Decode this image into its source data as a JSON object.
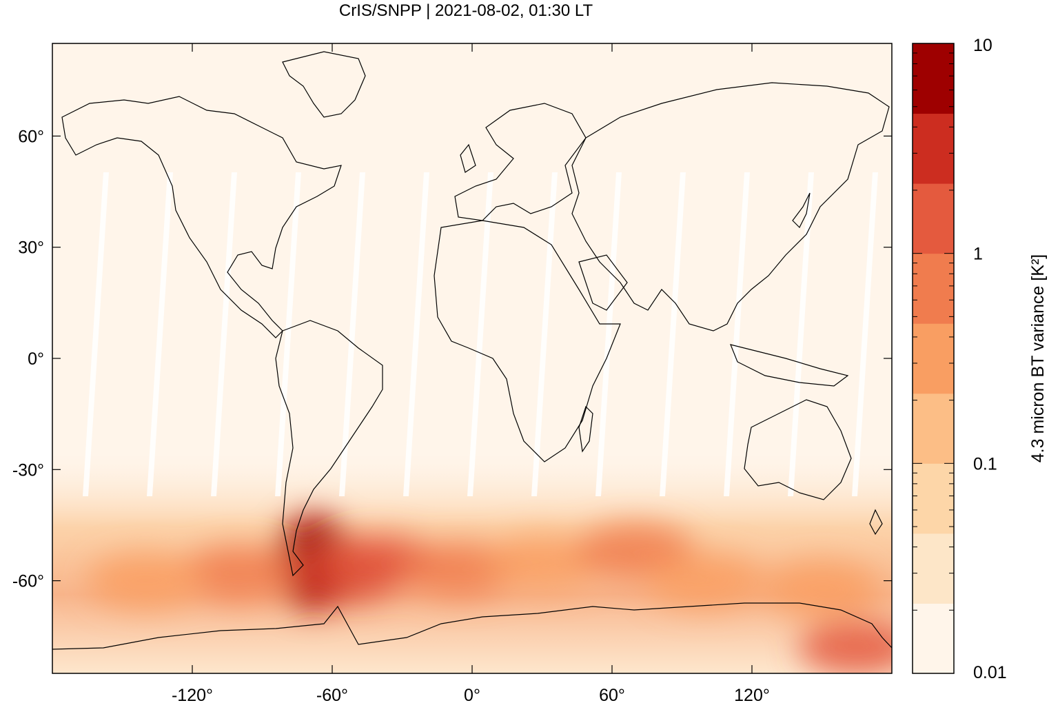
{
  "title": "CrIS/SNPP | 2021-08-02, 01:30 LT",
  "map": {
    "projection": "equirectangular",
    "lon_range": [
      -180,
      180
    ],
    "lat_range": [
      -85,
      85
    ],
    "x_ticks": [
      {
        "value": -120,
        "label": "-120°"
      },
      {
        "value": -60,
        "label": "-60°"
      },
      {
        "value": 0,
        "label": "0°"
      },
      {
        "value": 60,
        "label": "60°"
      },
      {
        "value": 120,
        "label": "120°"
      }
    ],
    "y_ticks": [
      {
        "value": 60,
        "label": "60°"
      },
      {
        "value": 30,
        "label": "30°"
      },
      {
        "value": 0,
        "label": "0°"
      },
      {
        "value": -30,
        "label": "-30°"
      },
      {
        "value": -60,
        "label": "-60°"
      }
    ],
    "background_color": "#fff5ea",
    "coastline_color": "#000000",
    "hotspots": [
      {
        "lon": -68,
        "lat": -55,
        "value": 8
      },
      {
        "lon": -55,
        "lat": -58,
        "value": 3
      },
      {
        "lon": -40,
        "lat": -55,
        "value": 1.2
      },
      {
        "lon": -100,
        "lat": -58,
        "value": 0.6
      },
      {
        "lon": -140,
        "lat": -60,
        "value": 0.4
      },
      {
        "lon": -5,
        "lat": -57,
        "value": 0.5
      },
      {
        "lon": 30,
        "lat": -55,
        "value": 0.45
      },
      {
        "lon": 70,
        "lat": -52,
        "value": 0.9
      },
      {
        "lon": 100,
        "lat": -60,
        "value": 0.4
      },
      {
        "lon": 150,
        "lat": -62,
        "value": 0.3
      },
      {
        "lon": 165,
        "lat": -78,
        "value": 2
      }
    ]
  },
  "colorbar": {
    "label": "4.3 micron BT variance [K²]",
    "scale": "log",
    "range": [
      0.01,
      10
    ],
    "tick_labels": [
      {
        "value": 10,
        "label": "10"
      },
      {
        "value": 1,
        "label": "1"
      },
      {
        "value": 0.1,
        "label": "0.1"
      },
      {
        "value": 0.01,
        "label": "0.01"
      }
    ],
    "colors": [
      "#fff5ea",
      "#fde6c8",
      "#fdd6a8",
      "#fcbe86",
      "#f99e62",
      "#f07c4e",
      "#e45a3e",
      "#cc2d20",
      "#9e0000"
    ]
  }
}
